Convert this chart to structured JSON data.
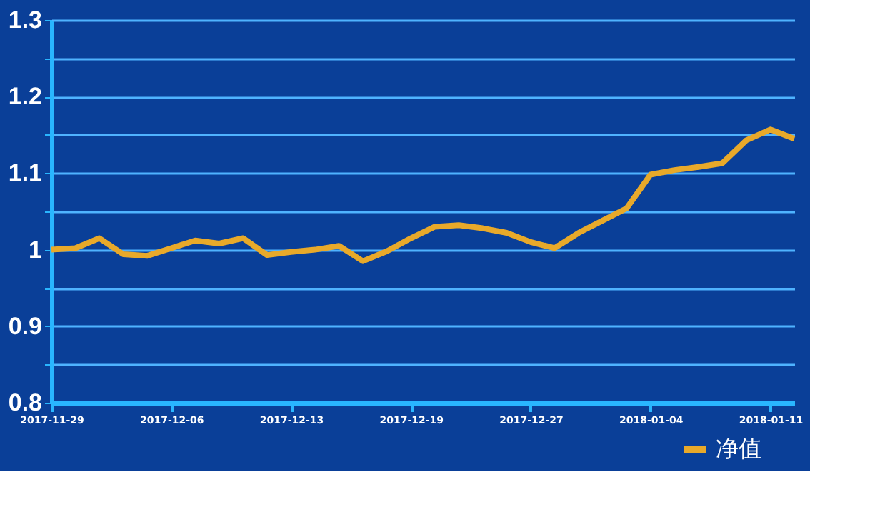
{
  "chart_data": {
    "type": "line",
    "categories": [
      "2017-11-29",
      null,
      null,
      null,
      null,
      "2017-12-06",
      null,
      null,
      null,
      null,
      "2017-12-13",
      null,
      null,
      null,
      null,
      "2017-12-19",
      null,
      null,
      null,
      null,
      "2017-12-27",
      null,
      null,
      null,
      null,
      "2018-01-04",
      null,
      null,
      null,
      null,
      "2018-01-11",
      null
    ],
    "series": [
      {
        "name": "净值",
        "color": "#e8a92a",
        "values": [
          1.0,
          1.002,
          1.015,
          0.994,
          0.992,
          1.002,
          1.012,
          1.008,
          1.015,
          0.993,
          0.997,
          1.0,
          1.005,
          0.985,
          0.998,
          1.015,
          1.03,
          1.032,
          1.028,
          1.022,
          1.01,
          1.002,
          1.022,
          1.038,
          1.054,
          1.098,
          1.104,
          1.108,
          1.113,
          1.143,
          1.157,
          1.145
        ]
      }
    ],
    "ylim": [
      0.8,
      1.3
    ],
    "yticks": [
      0.8,
      {
        "value": 0.85,
        "label": null
      },
      0.9,
      {
        "value": 0.95,
        "label": null
      },
      1,
      {
        "value": 1.05,
        "label": null
      },
      1.1,
      {
        "value": 1.15,
        "label": null
      },
      1.2,
      {
        "value": 1.25,
        "label": null
      },
      1.3
    ],
    "grid": "y",
    "legend": "bottom right",
    "marker": "none",
    "line_style": "solid"
  }
}
